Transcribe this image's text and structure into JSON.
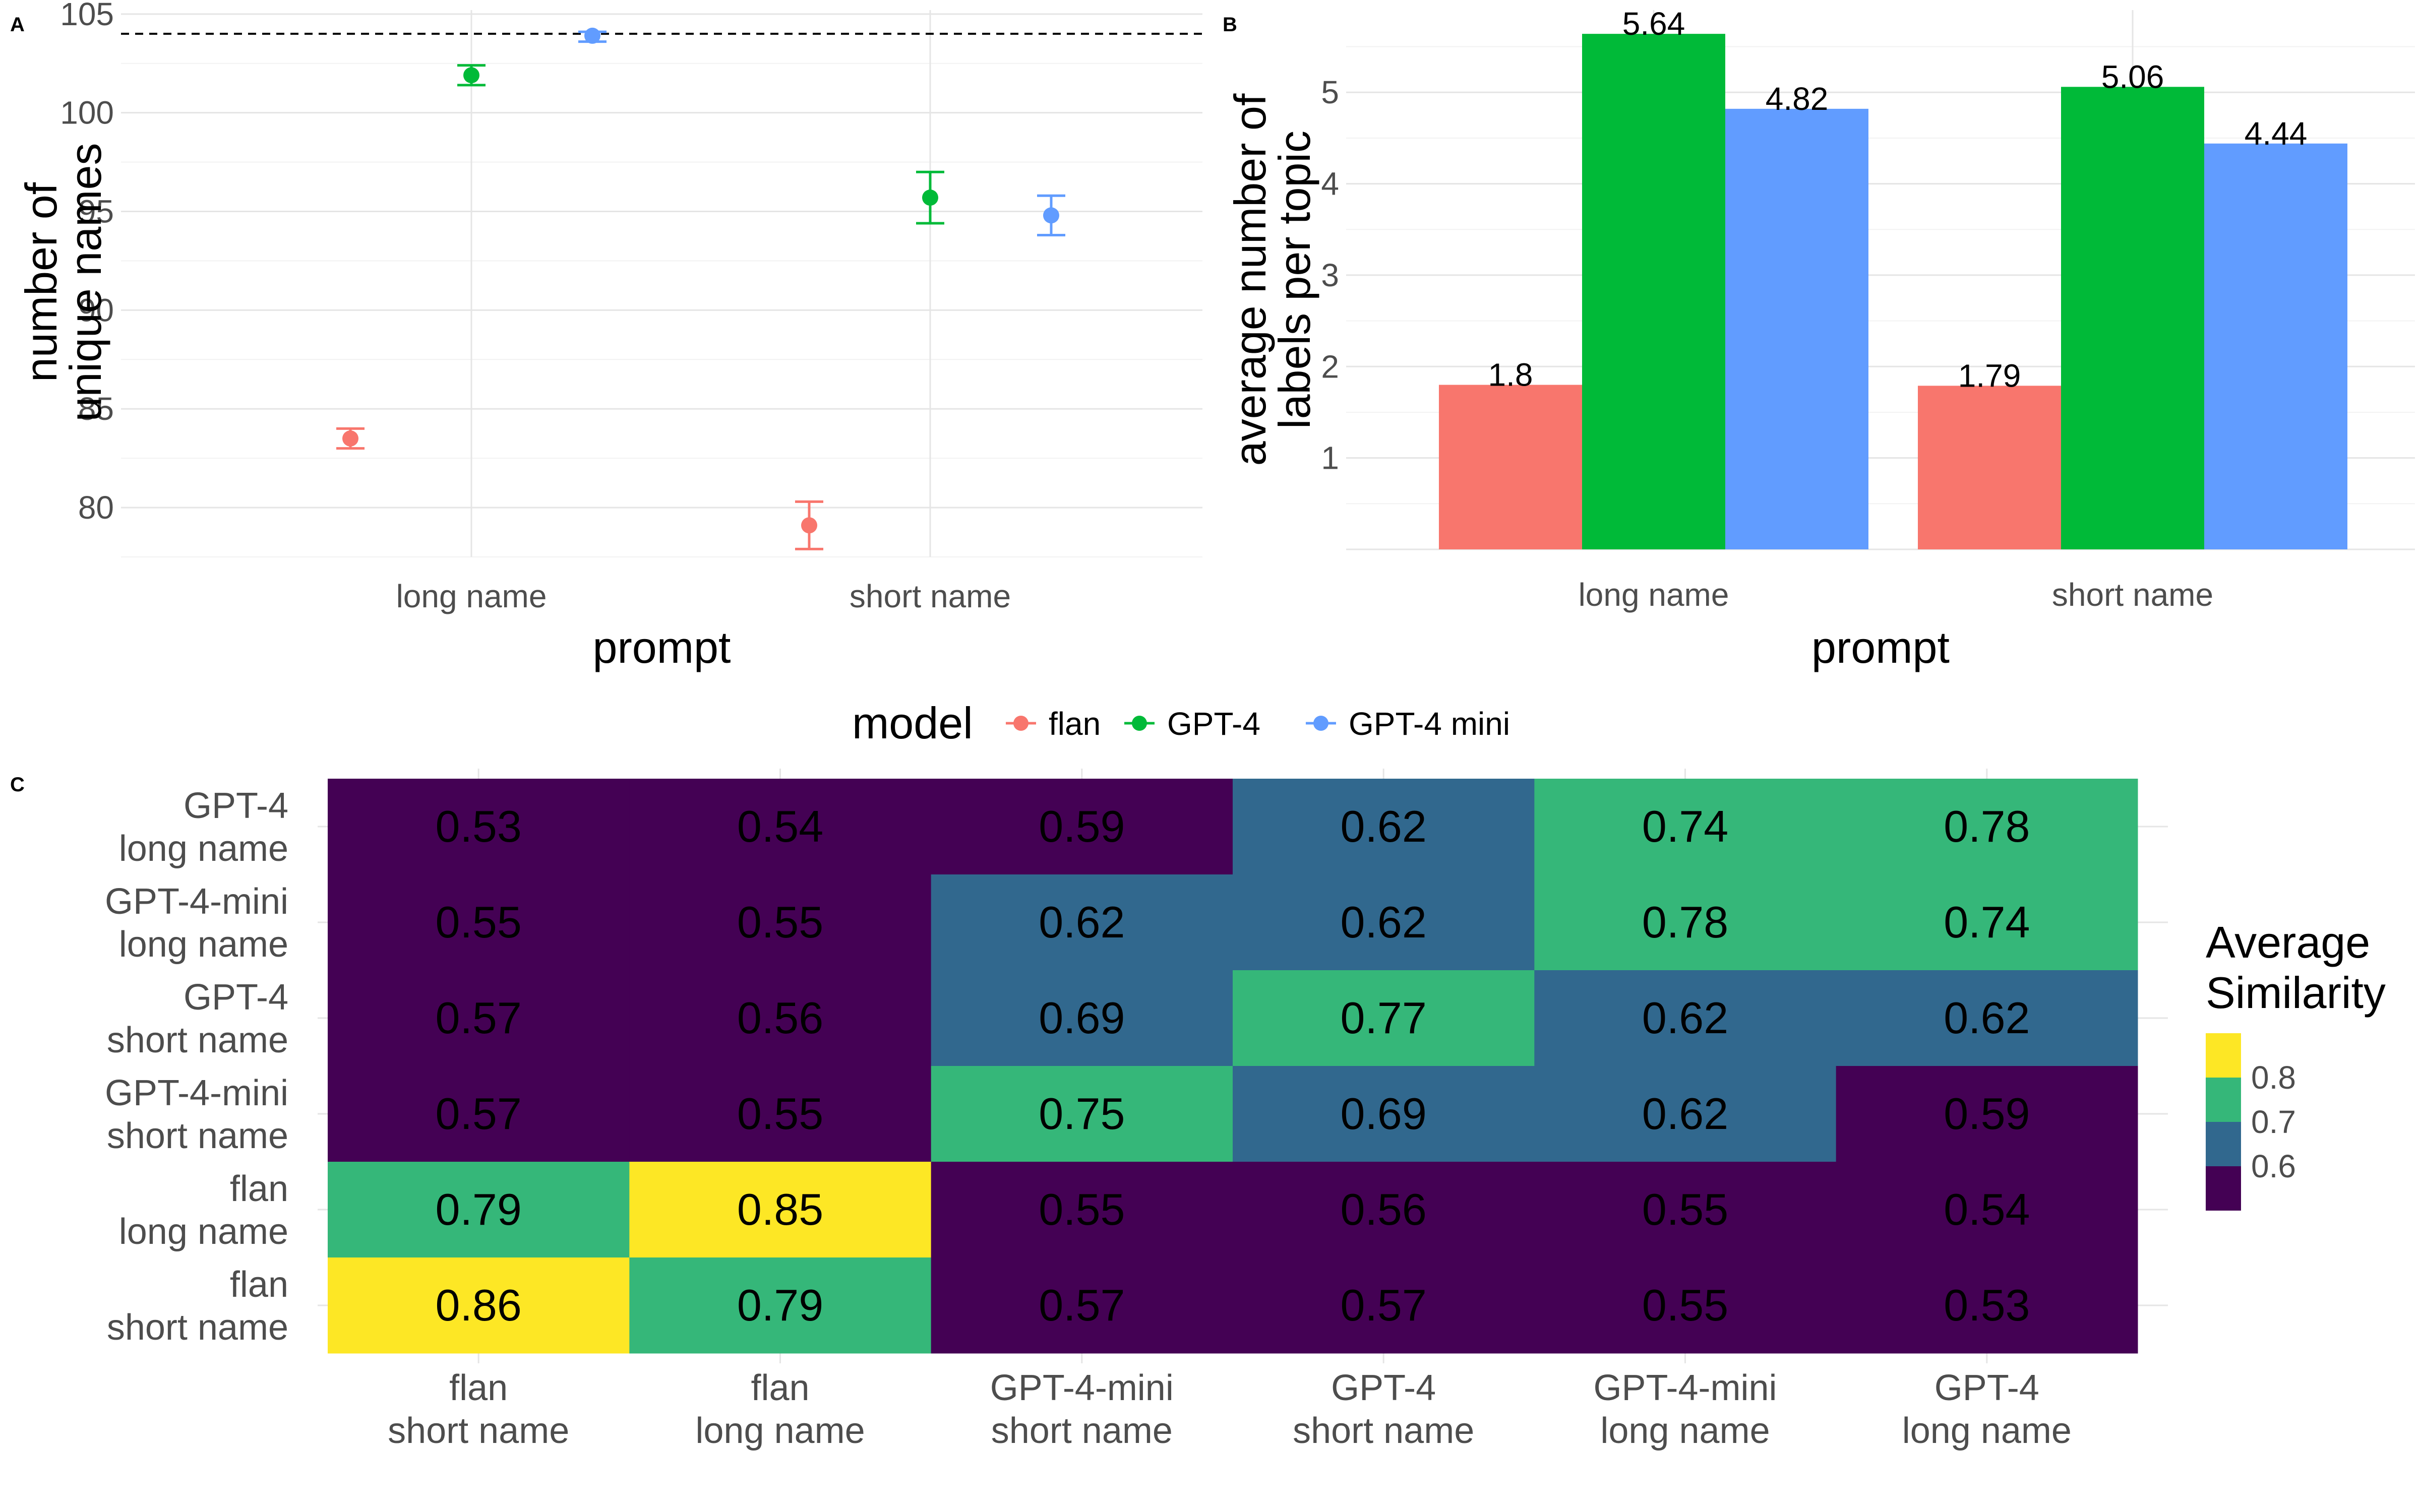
{
  "panels": {
    "A": {
      "letter": "A"
    },
    "B": {
      "letter": "B"
    },
    "C": {
      "letter": "C"
    }
  },
  "colors": {
    "flan": "#F8766D",
    "GPT-4": "#00BA38",
    "GPT-4 mini": "#619CFF",
    "grid": "#E5E5E5",
    "text": "#4D4D4D"
  },
  "legend": {
    "title": "model",
    "items": [
      "flan",
      "GPT-4",
      "GPT-4 mini"
    ]
  },
  "chart_data": [
    {
      "panel": "A",
      "type": "scatter",
      "xlabel": "prompt",
      "ylabel": [
        "number of",
        "unique names"
      ],
      "categories": [
        "long name",
        "short name"
      ],
      "ylim": [
        77.5,
        105.2
      ],
      "yticks": [
        80,
        85,
        90,
        95,
        100,
        105
      ],
      "reference_line": 104,
      "series": [
        {
          "name": "flan",
          "values": [
            83.5,
            79.1
          ],
          "err_low": [
            83.0,
            77.9
          ],
          "err_high": [
            84.0,
            80.3
          ]
        },
        {
          "name": "GPT-4",
          "values": [
            101.9,
            95.7
          ],
          "err_low": [
            101.4,
            94.4
          ],
          "err_high": [
            102.4,
            97.0
          ]
        },
        {
          "name": "GPT-4 mini",
          "values": [
            103.9,
            94.8
          ],
          "err_low": [
            103.6,
            93.8
          ],
          "err_high": [
            104.1,
            95.8
          ]
        }
      ]
    },
    {
      "panel": "B",
      "type": "bar",
      "xlabel": "prompt",
      "ylabel": [
        "average number of",
        "labels per topic"
      ],
      "categories": [
        "long name",
        "short name"
      ],
      "ylim": [
        0,
        5.9
      ],
      "yticks": [
        1,
        2,
        3,
        4,
        5
      ],
      "series": [
        {
          "name": "flan",
          "values": [
            1.8,
            1.79
          ]
        },
        {
          "name": "GPT-4",
          "values": [
            5.64,
            5.06
          ]
        },
        {
          "name": "GPT-4 mini",
          "values": [
            4.82,
            4.44
          ]
        }
      ]
    },
    {
      "panel": "C",
      "type": "heatmap",
      "legend_title": [
        "Average",
        "Similarity"
      ],
      "legend_ticks": [
        0.8,
        0.7,
        0.6
      ],
      "legend_colors": [
        "#FDE725",
        "#35B779",
        "#31688E",
        "#440154"
      ],
      "x_labels": [
        [
          "flan",
          "short name"
        ],
        [
          "flan",
          "long name"
        ],
        [
          "GPT-4-mini",
          "short name"
        ],
        [
          "GPT-4",
          "short name"
        ],
        [
          "GPT-4-mini",
          "long name"
        ],
        [
          "GPT-4",
          "long name"
        ]
      ],
      "y_labels": [
        [
          "GPT-4",
          "long name"
        ],
        [
          "GPT-4-mini",
          "long name"
        ],
        [
          "GPT-4",
          "short name"
        ],
        [
          "GPT-4-mini",
          "short name"
        ],
        [
          "flan",
          "long name"
        ],
        [
          "flan",
          "short name"
        ]
      ],
      "values": [
        [
          "0.53",
          "0.54",
          "0.59",
          "0.62",
          "0.74",
          "0.78"
        ],
        [
          "0.55",
          "0.55",
          "0.62",
          "0.62",
          "0.78",
          "0.74"
        ],
        [
          "0.57",
          "0.56",
          "0.69",
          "0.77",
          "0.62",
          "0.62"
        ],
        [
          "0.57",
          "0.55",
          "0.75",
          "0.69",
          "0.62",
          "0.59"
        ],
        [
          "0.79",
          "0.85",
          "0.55",
          "0.56",
          "0.55",
          "0.54"
        ],
        [
          "0.86",
          "0.79",
          "0.57",
          "0.57",
          "0.55",
          "0.53"
        ]
      ]
    }
  ]
}
